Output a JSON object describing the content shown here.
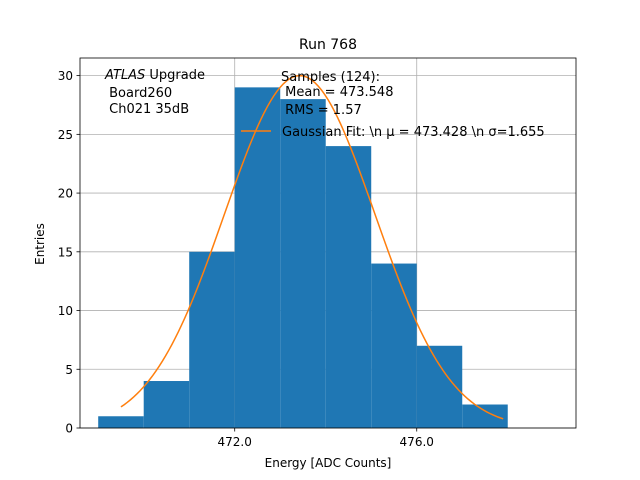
{
  "chart_data": {
    "type": "histogram",
    "title": "Run 768",
    "xlabel": "Energy [ADC Counts]",
    "ylabel": "Entries",
    "xlim": [
      468.6,
      479.5
    ],
    "ylim": [
      0,
      31.5
    ],
    "xticks": [
      {
        "value": 472.0,
        "label": "472.0"
      },
      {
        "value": 476.0,
        "label": "476.0"
      }
    ],
    "yticks": [
      {
        "value": 0,
        "label": "0"
      },
      {
        "value": 5,
        "label": "5"
      },
      {
        "value": 10,
        "label": "10"
      },
      {
        "value": 15,
        "label": "15"
      },
      {
        "value": 20,
        "label": "20"
      },
      {
        "value": 25,
        "label": "25"
      },
      {
        "value": 30,
        "label": "30"
      }
    ],
    "grid": true,
    "bin_edges": [
      469.0,
      470.0,
      471.0,
      472.0,
      473.0,
      474.0,
      475.0,
      476.0,
      477.0,
      478.0
    ],
    "counts": [
      1,
      4,
      15,
      29,
      28,
      24,
      14,
      7,
      2
    ],
    "bar_color": "#1f77b4",
    "fit": {
      "name": "Gaussian Fit",
      "mu": 473.428,
      "sigma": 1.655,
      "amplitude": 30,
      "x_range": [
        469.5,
        477.9
      ],
      "color": "#ff7f0e"
    },
    "annotation_left": {
      "line1_italic": "ATLAS",
      "line1_rest": " Upgrade",
      "line2": " Board260",
      "line3": " Ch021 35dB"
    },
    "legend": {
      "samples_line1": "Samples (124):",
      "samples_line2": " Mean = 473.548",
      "samples_line3": " RMS = 1.57",
      "fit_label": "Gaussian Fit: \\n μ = 473.428 \\n σ=1.655"
    }
  }
}
